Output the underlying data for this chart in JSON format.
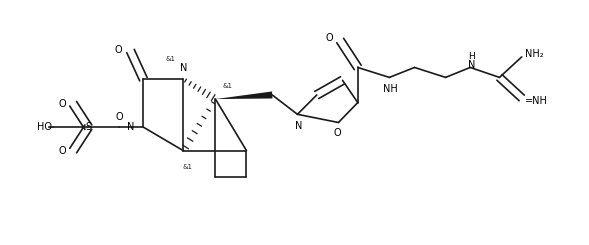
{
  "background": "#ffffff",
  "line_color": "#1a1a1a",
  "line_width": 1.2,
  "font_size": 7.0,
  "fig_width": 5.89,
  "fig_height": 2.45,
  "dpi": 100,
  "xlim": [
    0,
    10
  ],
  "ylim": [
    0,
    4.16
  ]
}
